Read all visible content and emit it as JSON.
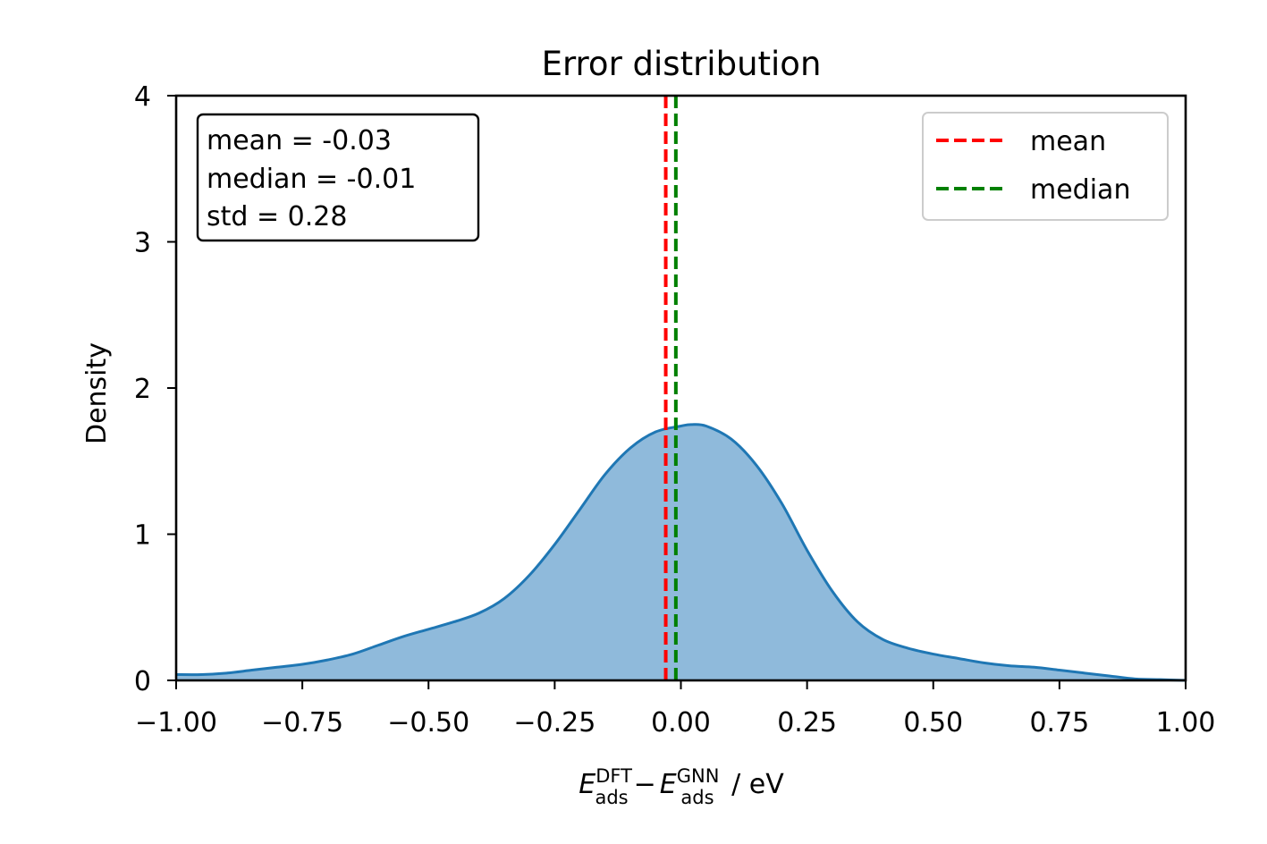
{
  "chart_data": {
    "type": "area",
    "title": "Error distribution",
    "xlabel": {
      "e1": "E",
      "e1_sup": "DFT",
      "e1_sub": "ads",
      "minus": "−",
      "e2": "E",
      "e2_sup": "GNN",
      "e2_sub": "ads",
      "unit": " / eV"
    },
    "ylabel": "Density",
    "xlim": [
      -1.0,
      1.0
    ],
    "ylim": [
      0,
      4
    ],
    "xticks": [
      -1.0,
      -0.75,
      -0.5,
      -0.25,
      0.0,
      0.25,
      0.5,
      0.75,
      1.0
    ],
    "xtick_labels": [
      "−1.00",
      "−0.75",
      "−0.50",
      "−0.25",
      "0.00",
      "0.25",
      "0.50",
      "0.75",
      "1.00"
    ],
    "yticks": [
      0,
      1,
      2,
      3,
      4
    ],
    "ytick_labels": [
      "0",
      "1",
      "2",
      "3",
      "4"
    ],
    "grid": false,
    "series": [
      {
        "name": "",
        "kind": "kde",
        "color": "#1f77b4",
        "fill_color": "#8fbadb",
        "x": [
          -1.0,
          -0.95,
          -0.9,
          -0.85,
          -0.8,
          -0.75,
          -0.7,
          -0.65,
          -0.6,
          -0.55,
          -0.5,
          -0.45,
          -0.4,
          -0.35,
          -0.3,
          -0.25,
          -0.2,
          -0.15,
          -0.1,
          -0.05,
          0.0,
          0.02,
          0.05,
          0.1,
          0.15,
          0.2,
          0.25,
          0.3,
          0.35,
          0.4,
          0.45,
          0.5,
          0.55,
          0.6,
          0.65,
          0.7,
          0.75,
          0.8,
          0.85,
          0.9,
          0.95,
          1.0
        ],
        "y": [
          0.04,
          0.04,
          0.05,
          0.07,
          0.09,
          0.11,
          0.14,
          0.18,
          0.24,
          0.3,
          0.35,
          0.4,
          0.46,
          0.56,
          0.72,
          0.93,
          1.17,
          1.41,
          1.59,
          1.7,
          1.74,
          1.75,
          1.74,
          1.65,
          1.47,
          1.21,
          0.89,
          0.61,
          0.4,
          0.28,
          0.22,
          0.18,
          0.15,
          0.12,
          0.1,
          0.09,
          0.07,
          0.05,
          0.03,
          0.01,
          0.005,
          0.0
        ]
      },
      {
        "name": "mean",
        "kind": "vline",
        "x": -0.03,
        "color": "#ff0000"
      },
      {
        "name": "median",
        "kind": "vline",
        "x": -0.01,
        "color": "#008000"
      }
    ],
    "legend": {
      "position": "top-right",
      "items": [
        {
          "label": "mean",
          "color": "#ff0000"
        },
        {
          "label": "median",
          "color": "#008000"
        }
      ]
    },
    "annotation_box": {
      "position": "top-left",
      "lines": [
        "mean = -0.03",
        "median = -0.01",
        "std = 0.28"
      ]
    }
  }
}
